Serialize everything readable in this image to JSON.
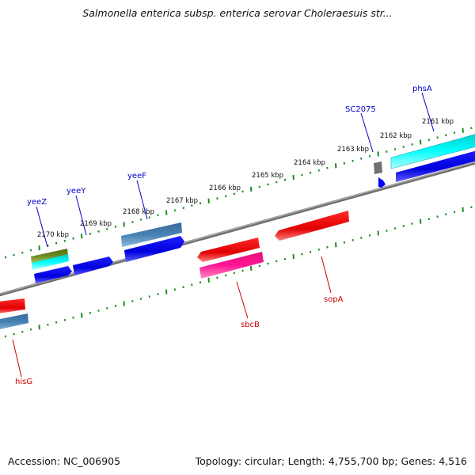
{
  "title": "Salmonella enterica subsp. enterica serovar Choleraesuis str...",
  "footer": {
    "accession": "Accession: NC_006905",
    "summary": "Topology: circular; Length: 4,755,700 bp; Genes: 4,516"
  },
  "colors": {
    "backbone": "#808080",
    "ticks": "#1e8c1e",
    "forward_label": "#0000cc",
    "reverse_label": "#cc0000"
  },
  "scale_labels": [
    "2161 kbp",
    "2162 kbp",
    "2163 kbp",
    "2164 kbp",
    "2165 kbp",
    "2166 kbp",
    "2167 kbp",
    "2168 kbp",
    "2169 kbp",
    "2170 kbp"
  ],
  "genes": {
    "phsA": "phsA",
    "SC2075": "SC2075",
    "yeeF": "yeeF",
    "yeeY": "yeeY",
    "yeeZ": "yeeZ",
    "sbcB": "sbcB",
    "sopA": "sopA",
    "hisG": "hisG"
  }
}
